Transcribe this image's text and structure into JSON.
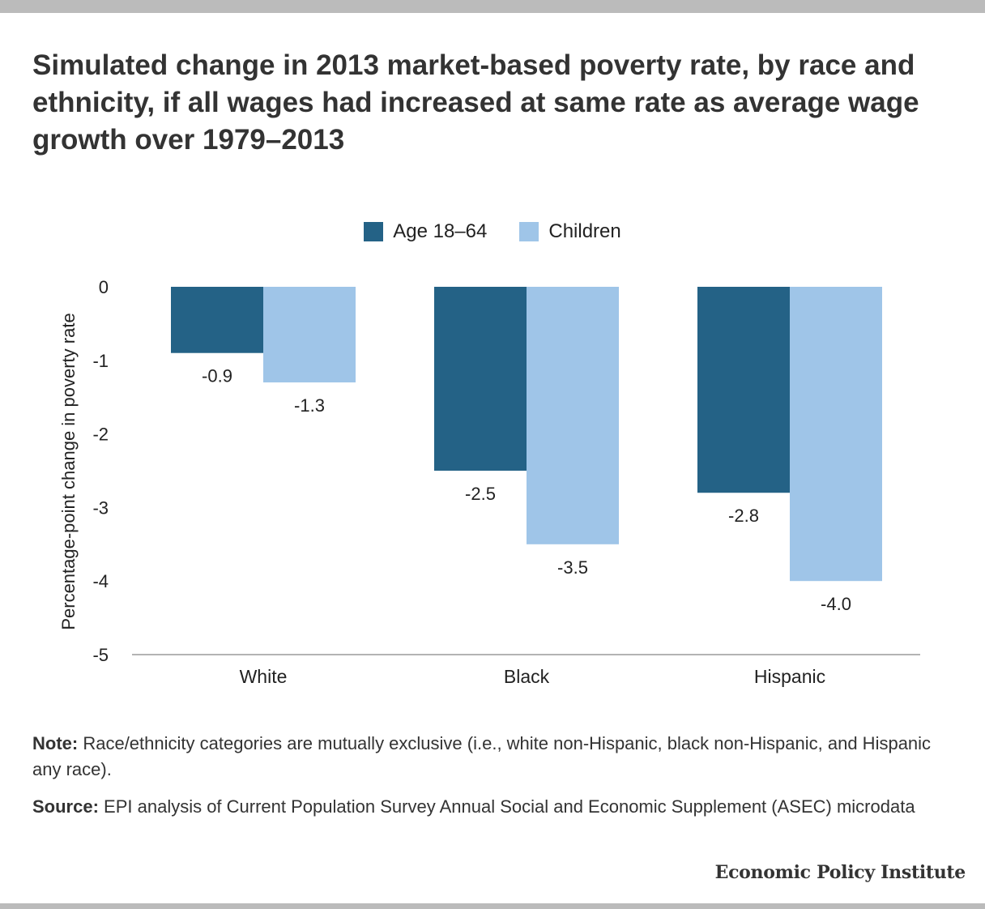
{
  "title": "Simulated change in 2013 market-based poverty rate, by race and ethnicity, if all wages had increased at same rate as average wage growth over 1979–2013",
  "note_label": "Note:",
  "note_text": " Race/ethnicity categories are mutually exclusive (i.e., white non-Hispanic, black non-Hispanic, and Hispanic any race).",
  "source_label": "Source:",
  "source_text": " EPI analysis of Current Population Survey Annual Social and Economic Supplement (ASEC) microdata",
  "brand": "Economic Policy Institute",
  "chart_data": {
    "type": "bar",
    "categories": [
      "White",
      "Black",
      "Hispanic"
    ],
    "series": [
      {
        "name": "Age 18–64",
        "values": [
          -0.9,
          -2.5,
          -2.8
        ],
        "labels": [
          "-0.9",
          "-2.5",
          "-2.8"
        ],
        "color": "#246286"
      },
      {
        "name": "Children",
        "values": [
          -1.3,
          -3.5,
          -4.0
        ],
        "labels": [
          "-1.3",
          "-3.5",
          "-4.0"
        ],
        "color": "#9fc5e8"
      }
    ],
    "ylabel": "Percentage-point change in poverty rate",
    "ylim": [
      -5,
      0
    ],
    "yticks": [
      0,
      -1,
      -2,
      -3,
      -4,
      -5
    ],
    "ytick_labels": [
      "0",
      "-1",
      "-2",
      "-3",
      "-4",
      "-5"
    ],
    "grid": false,
    "legend_position": "top-center"
  }
}
